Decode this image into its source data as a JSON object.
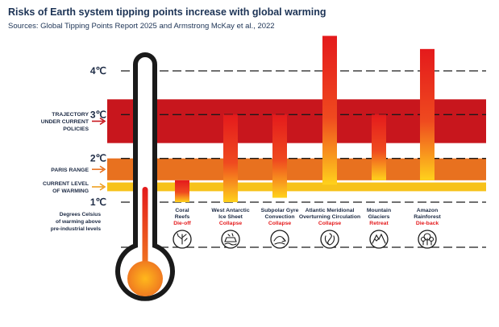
{
  "title": "Risks of Earth system tipping points increase with global warming",
  "subtitle": "Sources: Global Tipping Points Report 2025 and Armstrong McKay et al., 2022",
  "chart_data": {
    "type": "bar",
    "title": "Risks of Earth system tipping points increase with global warming",
    "ylabel": "Degrees Celsius of warming above pre-industrial levels",
    "ylim": [
      1,
      4
    ],
    "yticks": [
      "4℃",
      "3℃",
      "2℃",
      "1℃"
    ],
    "ytick_values": [
      4,
      3,
      2,
      1
    ],
    "bands": [
      {
        "label": "TRAJECTORY UNDER CURRENT POLICIES",
        "from": 2.35,
        "to": 3.35,
        "color": "#c8161d"
      },
      {
        "label": "PARIS RANGE",
        "from": 1.5,
        "to": 2.0,
        "color": "#e8711f"
      },
      {
        "label": "CURRENT LEVEL OF WARMING",
        "from": 1.25,
        "to": 1.45,
        "color": "#f7c21a"
      }
    ],
    "series": [
      {
        "name": "Coral Reefs",
        "outcome": "Die-off",
        "low": 1.0,
        "high": 1.5,
        "icon": "coral-icon"
      },
      {
        "name": "West Antarctic Ice Sheet",
        "outcome": "Collapse",
        "low": 1.0,
        "high": 3.0,
        "icon": "ice-sheet-icon"
      },
      {
        "name": "Subpolar Gyre Convection",
        "outcome": "Collapse",
        "low": 1.1,
        "high": 3.0,
        "icon": "gyre-icon"
      },
      {
        "name": "Atlantic Meridional Overturning Circulation",
        "outcome": "Collapse",
        "low": 1.4,
        "high": 4.8,
        "icon": "amoc-icon"
      },
      {
        "name": "Mountain Glaciers",
        "outcome": "Retreat",
        "low": 1.5,
        "high": 3.0,
        "icon": "glacier-icon"
      },
      {
        "name": "Amazon Rainforest",
        "outcome": "Die-back",
        "low": 1.5,
        "high": 4.5,
        "icon": "rainforest-icon"
      }
    ],
    "category_labels": [
      {
        "lines": [
          "Coral",
          "Reefs"
        ],
        "outcome": "Die-off"
      },
      {
        "lines": [
          "West Antarctic",
          "Ice Sheet"
        ],
        "outcome": "Collapse"
      },
      {
        "lines": [
          "Subpolar Gyre",
          "Convection"
        ],
        "outcome": "Collapse"
      },
      {
        "lines": [
          "Atlantic Meridional",
          "Overturning Circulation"
        ],
        "outcome": "Collapse"
      },
      {
        "lines": [
          "Mountain",
          "Glaciers"
        ],
        "outcome": "Retreat"
      },
      {
        "lines": [
          "Amazon",
          "Rainforest"
        ],
        "outcome": "Die-back"
      }
    ],
    "band_labels": [
      {
        "lines": [
          "TRAJECTORY",
          "UNDER CURRENT",
          "POLICIES"
        ],
        "arrow_color": "#c8161d",
        "value": 2.85
      },
      {
        "lines": [
          "PARIS RANGE"
        ],
        "arrow_color": "#e8711f",
        "value": 1.75
      },
      {
        "lines": [
          "CURRENT LEVEL",
          "OF WARMING"
        ],
        "arrow_color": "#f0a020",
        "value": 1.35
      }
    ],
    "ylabel_lines": [
      "Degrees Celsius",
      "of warming above",
      "pre-industrial levels"
    ],
    "thermometer_level": 1.35,
    "grid": true,
    "legend": "left",
    "colors": {
      "bar_top": "#e41a1c",
      "bar_bottom": "#ffd21c",
      "outcome_text": "#e41a1c",
      "thermo_outline": "#1a1a1a",
      "thermo_fill": "#e8711f"
    }
  }
}
